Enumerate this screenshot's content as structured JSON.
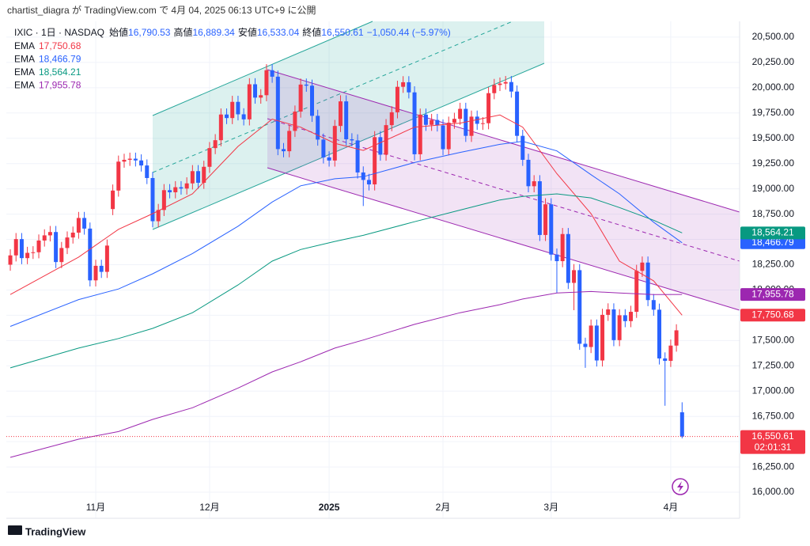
{
  "header": {
    "publish": "chartist_diagra が TradingView.com で 4月 04, 2025 06:13 UTC+9 に公開",
    "symbol": "IXIC · 1日 · NASDAQ",
    "ohlc": [
      {
        "label": "始値",
        "value": "16,790.53"
      },
      {
        "label": "高値",
        "value": "16,889.34"
      },
      {
        "label": "安値",
        "value": "16,533.04"
      },
      {
        "label": "終値",
        "value": "16,550.61"
      }
    ],
    "change": "−1,050.44 (−5.97%)"
  },
  "footer": {
    "brand": "TradingView"
  },
  "chart_data": {
    "type": "candlestick",
    "up_color": "#f23645",
    "down_color": "#2962ff",
    "open": [
      18250,
      18342,
      18503,
      18315,
      18367,
      18373,
      18489,
      18540,
      18573,
      18276,
      18415,
      18519,
      18567,
      18712,
      18607,
      18095,
      18239,
      18179,
      18800,
      18983,
      19269,
      19287,
      19298,
      19281,
      19231,
      19107,
      18680,
      18791,
      18987,
      18966,
      19016,
      19003,
      19054,
      19175,
      19060,
      19218,
      19403,
      19481,
      19735,
      19700,
      19860,
      19737,
      19687,
      20034,
      19902,
      19926,
      20173,
      20109,
      19393,
      19372,
      19573,
      19764,
      20031,
      20020,
      19722,
      19487,
      19311,
      19280,
      19622,
      19865,
      19490,
      19479,
      19162,
      19088,
      19044,
      19511,
      19338,
      19630,
      19757,
      20009,
      20054,
      19954,
      19342,
      19734,
      19633,
      19681,
      19627,
      19392,
      19654,
      19692,
      19791,
      19524,
      19714,
      19643,
      19649,
      19946,
      20027,
      20041,
      20056,
      19962,
      19524,
      19287,
      19026,
      19075,
      18544,
      18847,
      18350,
      18285,
      18553,
      18070,
      18196,
      17468,
      17436,
      17648,
      17303,
      17754,
      17808,
      17504,
      17750,
      17692,
      17784,
      18189,
      18271,
      17900,
      17805,
      17323,
      17299,
      17450,
      16790.53
    ],
    "high": [
      18402,
      18563,
      18563,
      18427,
      18433,
      18549,
      18600,
      18633,
      18633,
      18475,
      18579,
      18627,
      18772,
      18772,
      18667,
      18299,
      18299,
      18499,
      19043,
      19329,
      19347,
      19358,
      19358,
      19341,
      19291,
      19167,
      18851,
      19047,
      19047,
      19076,
      19076,
      19114,
      19235,
      19235,
      19278,
      19463,
      19541,
      19795,
      19795,
      19920,
      19920,
      19797,
      20094,
      20094,
      19986,
      20233,
      20233,
      20169,
      19453,
      19633,
      19824,
      20091,
      20091,
      20080,
      19782,
      19547,
      19371,
      19682,
      19925,
      19925,
      19550,
      19539,
      19222,
      19148,
      19571,
      19571,
      19690,
      19817,
      20069,
      20114,
      20114,
      20014,
      19794,
      19794,
      19741,
      19741,
      19687,
      19714,
      19752,
      19851,
      19851,
      19774,
      19774,
      19709,
      20006,
      20087,
      20101,
      20116,
      20116,
      20022,
      19584,
      19347,
      19135,
      19135,
      18907,
      18907,
      18410,
      18613,
      18613,
      18256,
      18256,
      17528,
      17708,
      17708,
      17814,
      17868,
      17868,
      17810,
      17810,
      17844,
      18249,
      18331,
      18331,
      17960,
      17865,
      17383,
      17510,
      17661,
      16889.34
    ],
    "low": [
      18190,
      18282,
      18255,
      18255,
      18307,
      18313,
      18429,
      18480,
      18216,
      18216,
      18355,
      18459,
      18507,
      18547,
      18035,
      18035,
      18119,
      18119,
      18740,
      18923,
      19209,
      19227,
      19221,
      19171,
      19047,
      18620,
      18620,
      18731,
      18906,
      18906,
      18943,
      18943,
      18994,
      19000,
      19000,
      19158,
      19343,
      19421,
      19640,
      19640,
      19677,
      19627,
      19627,
      19842,
      19842,
      19866,
      20049,
      19333,
      19312,
      19312,
      19513,
      19704,
      19960,
      19662,
      19427,
      19251,
      19220,
      19220,
      19562,
      19430,
      19419,
      19102,
      18830,
      18984,
      18984,
      19278,
      19278,
      19570,
      19697,
      19949,
      19894,
      19282,
      19282,
      19573,
      19573,
      19567,
      19332,
      19332,
      19594,
      19632,
      19464,
      19464,
      19583,
      19583,
      19589,
      19886,
      19967,
      19981,
      19902,
      19464,
      19227,
      18966,
      18966,
      18484,
      18484,
      18290,
      17970,
      18225,
      18010,
      17800,
      17408,
      17230,
      17376,
      17243,
      17243,
      17694,
      17444,
      17444,
      17632,
      17632,
      17724,
      18129,
      17840,
      17745,
      17263,
      16855,
      17239,
      17390,
      16533.04
    ],
    "close": [
      18342,
      18503,
      18315,
      18367,
      18373,
      18489,
      18540,
      18573,
      18276,
      18415,
      18519,
      18567,
      18712,
      18607,
      18095,
      18239,
      18179,
      18439,
      18983,
      19269,
      19287,
      19298,
      19281,
      19231,
      19107,
      18680,
      18791,
      18987,
      18966,
      19016,
      19003,
      19054,
      19175,
      19060,
      19218,
      19403,
      19481,
      19735,
      19700,
      19860,
      19737,
      19687,
      20034,
      19902,
      19926,
      20173,
      20109,
      19393,
      19372,
      19573,
      19764,
      20031,
      20020,
      19722,
      19487,
      19311,
      19280,
      19622,
      19865,
      19490,
      19479,
      19162,
      19088,
      19044,
      19511,
      19338,
      19630,
      19757,
      20009,
      20054,
      19954,
      19342,
      19734,
      19633,
      19681,
      19627,
      19392,
      19654,
      19692,
      19791,
      19524,
      19714,
      19643,
      19649,
      19946,
      20027,
      20041,
      20056,
      19962,
      19524,
      19287,
      19026,
      19075,
      18544,
      18847,
      18350,
      18285,
      18553,
      18070,
      18196,
      17468,
      17436,
      17648,
      17303,
      17754,
      17808,
      17504,
      17750,
      17692,
      17784,
      18189,
      18271,
      17900,
      17805,
      17323,
      17299,
      17450,
      17601,
      16550.61
    ],
    "last_price_label": "16,550.61",
    "countdown": "02:01:31",
    "overlays": [
      {
        "name": "EMA",
        "color": "#f23645",
        "x": [
          0,
          12,
          19,
          25,
          32,
          40,
          46,
          51,
          57,
          62,
          71,
          79,
          86,
          90,
          96,
          102,
          107,
          113,
          118
        ],
        "values": [
          17955,
          18325,
          18600,
          18755,
          18950,
          19420,
          19690,
          19610,
          19450,
          19380,
          19610,
          19650,
          19730,
          19610,
          19150,
          18755,
          18285,
          18090,
          17750.68
        ],
        "value_labels": [
          null,
          null,
          null,
          null,
          null,
          null,
          null,
          null,
          null,
          null,
          null,
          null,
          null,
          null,
          null,
          null,
          null,
          null,
          "17,750.68"
        ]
      },
      {
        "name": "EMA",
        "color": "#2962ff",
        "x": [
          0,
          12,
          19,
          25,
          32,
          40,
          46,
          51,
          57,
          62,
          71,
          79,
          86,
          90,
          96,
          102,
          107,
          113,
          118
        ],
        "values": [
          17640,
          17905,
          18010,
          18160,
          18360,
          18630,
          18870,
          19030,
          19100,
          19120,
          19260,
          19360,
          19440,
          19470,
          19375,
          19140,
          18950,
          18670,
          18466.79
        ],
        "value_labels": [
          null,
          null,
          null,
          null,
          null,
          null,
          null,
          null,
          null,
          null,
          null,
          null,
          null,
          null,
          null,
          null,
          null,
          null,
          "18,466.79"
        ]
      },
      {
        "name": "EMA",
        "color": "#089981",
        "x": [
          0,
          12,
          19,
          25,
          32,
          40,
          46,
          51,
          57,
          62,
          71,
          79,
          86,
          90,
          96,
          102,
          107,
          113,
          118
        ],
        "values": [
          17230,
          17425,
          17520,
          17620,
          17775,
          18050,
          18285,
          18400,
          18480,
          18540,
          18675,
          18790,
          18890,
          18925,
          18950,
          18910,
          18815,
          18690,
          18564.21
        ],
        "value_labels": [
          null,
          null,
          null,
          null,
          null,
          null,
          null,
          null,
          null,
          null,
          null,
          null,
          null,
          null,
          null,
          null,
          null,
          null,
          "18,564.21"
        ]
      },
      {
        "name": "EMA",
        "color": "#9c27b0",
        "x": [
          0,
          12,
          19,
          25,
          32,
          40,
          46,
          51,
          57,
          62,
          71,
          79,
          86,
          90,
          96,
          102,
          107,
          113,
          118
        ],
        "values": [
          16345,
          16525,
          16600,
          16720,
          16835,
          17030,
          17190,
          17290,
          17425,
          17505,
          17660,
          17775,
          17855,
          17910,
          17970,
          17985,
          17970,
          17955,
          17955.78
        ],
        "value_labels": [
          null,
          null,
          null,
          null,
          null,
          null,
          null,
          null,
          null,
          null,
          null,
          null,
          null,
          null,
          null,
          null,
          null,
          null,
          "17,955.78"
        ]
      }
    ],
    "ylim": [
      15797,
      20656
    ],
    "yticks": [
      {
        "value": 16000,
        "label": "16,000.00"
      },
      {
        "value": 16250,
        "label": "16,250.00"
      },
      {
        "value": 16500,
        "label": "16,500.00"
      },
      {
        "value": 16750,
        "label": "16,750.00"
      },
      {
        "value": 17000,
        "label": "17,000.00"
      },
      {
        "value": 17250,
        "label": "17,250.00"
      },
      {
        "value": 17500,
        "label": "17,500.00"
      },
      {
        "value": 17750,
        "label": "17,750.00"
      },
      {
        "value": 18000,
        "label": "18,000.00"
      },
      {
        "value": 18250,
        "label": "18,250.00"
      },
      {
        "value": 18500,
        "label": "18,500.00"
      },
      {
        "value": 18750,
        "label": "18,750.00"
      },
      {
        "value": 19000,
        "label": "19,000.00"
      },
      {
        "value": 19250,
        "label": "19,250.00"
      },
      {
        "value": 19500,
        "label": "19,500.00"
      },
      {
        "value": 19750,
        "label": "19,750.00"
      },
      {
        "value": 20000,
        "label": "20,000.00"
      },
      {
        "value": 20250,
        "label": "20,250.00"
      },
      {
        "value": 20500,
        "label": "20,500.00"
      }
    ],
    "xlim": [
      -0.7,
      128.1
    ],
    "xticks": [
      {
        "value": 15,
        "label": "11月"
      },
      {
        "value": 35,
        "label": "12月"
      },
      {
        "value": 56,
        "label": "2025"
      },
      {
        "value": 76,
        "label": "2月"
      },
      {
        "value": 95,
        "label": "3月"
      },
      {
        "value": 116,
        "label": "4月"
      }
    ],
    "grid": true
  }
}
